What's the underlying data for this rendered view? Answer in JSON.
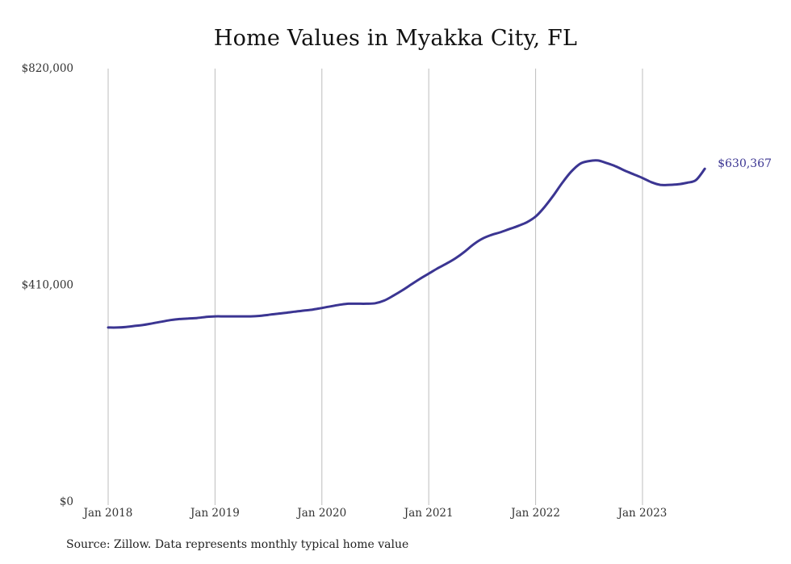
{
  "chart_data": {
    "type": "line",
    "title": "Home Values in Myakka City, FL",
    "xlabel": "",
    "ylabel": "",
    "ylim": [
      0,
      820000
    ],
    "y_ticks": [
      "$0",
      "$410,000",
      "$820,000"
    ],
    "y_tick_values": [
      0,
      410000,
      820000
    ],
    "x_ticks": [
      "Jan 2018",
      "Jan 2019",
      "Jan 2020",
      "Jan 2021",
      "Jan 2022",
      "Jan 2023"
    ],
    "x_tick_values": [
      "2018-01",
      "2019-01",
      "2020-01",
      "2021-01",
      "2022-01",
      "2023-01"
    ],
    "grid": "vertical",
    "line_color": "#3b3592",
    "end_label": "$630,367",
    "series": [
      {
        "x": [
          "2018-01",
          "2018-02",
          "2018-03",
          "2018-04",
          "2018-05",
          "2018-06",
          "2018-07",
          "2018-08",
          "2018-09",
          "2018-10",
          "2018-11",
          "2018-12",
          "2019-01",
          "2019-02",
          "2019-03",
          "2019-04",
          "2019-05",
          "2019-06",
          "2019-07",
          "2019-08",
          "2019-09",
          "2019-10",
          "2019-11",
          "2019-12",
          "2020-01",
          "2020-02",
          "2020-03",
          "2020-04",
          "2020-05",
          "2020-06",
          "2020-07",
          "2020-08",
          "2020-09",
          "2020-10",
          "2020-11",
          "2020-12",
          "2021-01",
          "2021-02",
          "2021-03",
          "2021-04",
          "2021-05",
          "2021-06",
          "2021-07",
          "2021-08",
          "2021-09",
          "2021-10",
          "2021-11",
          "2021-12",
          "2022-01",
          "2022-02",
          "2022-03",
          "2022-04",
          "2022-05",
          "2022-06",
          "2022-07",
          "2022-08",
          "2022-09",
          "2022-10",
          "2022-11",
          "2022-12",
          "2023-01",
          "2023-02",
          "2023-03",
          "2023-04",
          "2023-05",
          "2023-06",
          "2023-07",
          "2023-08"
        ],
        "values": [
          330000,
          330000,
          331000,
          333000,
          335000,
          338000,
          341000,
          344000,
          346000,
          347000,
          348000,
          350000,
          351000,
          351000,
          351000,
          351000,
          351000,
          352000,
          354000,
          356000,
          358000,
          360000,
          362000,
          364000,
          367000,
          370000,
          373000,
          375000,
          375000,
          375000,
          376000,
          381000,
          390000,
          400000,
          411000,
          422000,
          432000,
          442000,
          451000,
          461000,
          473000,
          487000,
          498000,
          505000,
          510000,
          516000,
          522000,
          529000,
          540000,
          558000,
          580000,
          604000,
          625000,
          640000,
          645000,
          646000,
          641000,
          635000,
          627000,
          620000,
          613000,
          605000,
          600000,
          600000,
          601000,
          604000,
          609000,
          630367
        ]
      }
    ]
  }
}
